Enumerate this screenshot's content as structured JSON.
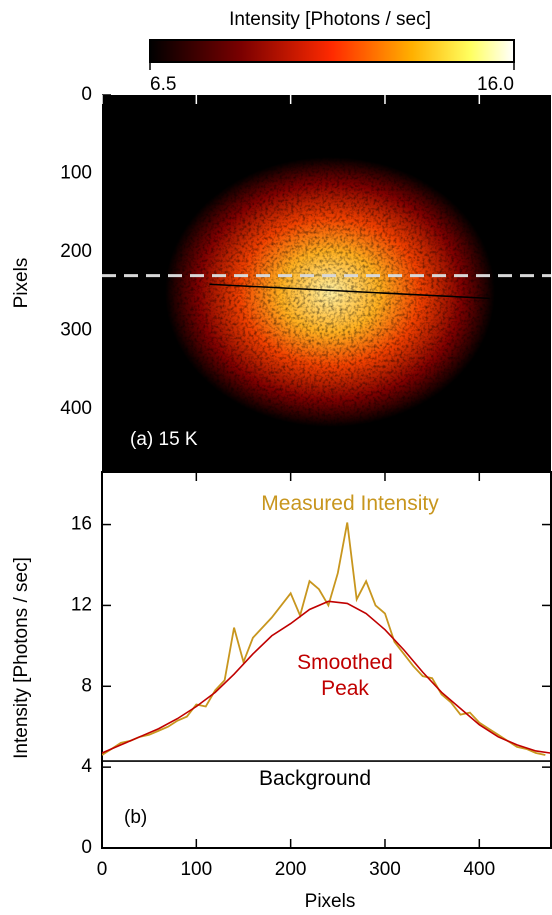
{
  "chart_data": [
    {
      "type": "heatmap",
      "colorbar_label": "Intensity [Photons / sec]",
      "clim": [
        6.5,
        16
      ],
      "cticks": [
        6.5,
        {
          "value": 16,
          "label": "16.0"
        }
      ],
      "ylabel": "Pixels",
      "annotation": "(a) 15 K",
      "xlim": [
        0,
        476
      ],
      "ylim": [
        0,
        480
      ],
      "yticks": [
        0,
        100,
        200,
        300,
        400
      ],
      "reference_line_y": 230,
      "profile_line": {
        "x": [
          114,
          411
        ],
        "y": [
          241,
          259
        ]
      }
    },
    {
      "type": "line",
      "annotation": "(b)",
      "xlabel": "Pixels",
      "ylabel": "Intensity [Photons / sec]",
      "xlim": [
        0,
        476
      ],
      "xticks": [
        0,
        100,
        200,
        300,
        400
      ],
      "ylim": [
        0,
        18.6
      ],
      "yticks": [
        0,
        4,
        8,
        12,
        16
      ],
      "series": [
        {
          "name": "Measured Intensity",
          "color": "#c8961e",
          "x": [
            0,
            10,
            20,
            30,
            40,
            50,
            60,
            70,
            80,
            90,
            100,
            110,
            120,
            130,
            140,
            150,
            160,
            170,
            180,
            190,
            200,
            210,
            220,
            230,
            240,
            250,
            260,
            270,
            280,
            290,
            300,
            310,
            320,
            330,
            340,
            350,
            360,
            370,
            380,
            390,
            400,
            410,
            420,
            430,
            440,
            450,
            460,
            470
          ],
          "values": [
            4.6,
            4.9,
            5.2,
            5.3,
            5.5,
            5.6,
            5.8,
            6.0,
            6.3,
            6.5,
            7.1,
            7.0,
            7.8,
            8.3,
            10.9,
            9.2,
            10.4,
            10.9,
            11.4,
            12.0,
            12.6,
            11.5,
            13.2,
            12.8,
            12.0,
            13.6,
            16.1,
            12.3,
            13.2,
            12.0,
            11.6,
            10.2,
            9.6,
            9.0,
            8.5,
            8.4,
            7.6,
            7.2,
            6.6,
            6.7,
            6.2,
            5.9,
            5.6,
            5.3,
            5.0,
            4.9,
            4.7,
            4.6
          ]
        },
        {
          "name": "Smoothed Peak",
          "color": "#c00000",
          "x": [
            0,
            20,
            40,
            60,
            80,
            100,
            120,
            140,
            160,
            180,
            200,
            220,
            240,
            260,
            280,
            300,
            320,
            340,
            360,
            380,
            400,
            420,
            440,
            460,
            475
          ],
          "values": [
            4.7,
            5.1,
            5.5,
            5.9,
            6.4,
            7.0,
            7.7,
            8.6,
            9.6,
            10.5,
            11.1,
            11.8,
            12.2,
            12.1,
            11.6,
            10.8,
            9.8,
            8.7,
            7.7,
            6.9,
            6.1,
            5.5,
            5.1,
            4.8,
            4.7
          ]
        },
        {
          "name": "Background",
          "color": "#000000",
          "x": [
            0,
            476
          ],
          "values": [
            4.3,
            4.3
          ]
        }
      ]
    }
  ]
}
